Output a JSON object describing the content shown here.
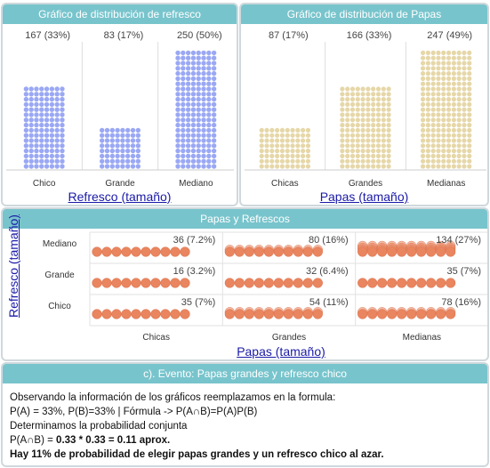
{
  "panels": {
    "refresco": {
      "title": "Gráfico de distribución de refresco",
      "axis_title": "Refresco (tamaño)"
    },
    "papas": {
      "title": "Gráfico de distribución de Papas",
      "axis_title": "Papas (tamaño)"
    },
    "joint": {
      "title": "Papas y Refrescos",
      "x_axis_title": "Papas (tamaño)",
      "y_axis_title": "Refresco (tamaño)"
    },
    "event": {
      "title": "c). Evento: Papas grandes y refresco chico",
      "line1": "Observando la información de los gráficos reemplazamos en la formula:",
      "line2": "P(A) = 33%, P(B)=33% | Fórmula -> P(A∩B)=P(A)P(B)",
      "line3": "Determinamos la probabilidad conjunta",
      "line4_prefix": "P(A∩B) = ",
      "line4_bold": "0.33 * 0.33 = 0.11 aprox.",
      "line5": "Hay 11% de probabilidad de elegir papas grandes y un refresco chico al azar."
    }
  },
  "colors": {
    "header": "#78c4cc",
    "refresco_dots": "#9aa8f4",
    "papas_dots": "#e6d7a8",
    "joint_dots": "#e9855f",
    "axis_title": "#1a1aa8"
  },
  "chart_data": [
    {
      "type": "bar",
      "title": "Gráfico de distribución de refresco",
      "xlabel": "Refresco (tamaño)",
      "categories": [
        "Chico",
        "Grande",
        "Mediano"
      ],
      "values": [
        167,
        83,
        250
      ],
      "labels": [
        "167 (33%)",
        "83 (17%)",
        "250 (50%)"
      ]
    },
    {
      "type": "bar",
      "title": "Gráfico de distribución de Papas",
      "xlabel": "Papas (tamaño)",
      "categories": [
        "Chicas",
        "Grandes",
        "Medianas"
      ],
      "values": [
        87,
        166,
        247
      ],
      "labels": [
        "87 (17%)",
        "166 (33%)",
        "247 (49%)"
      ]
    },
    {
      "type": "heatmap",
      "title": "Papas y Refrescos",
      "xlabel": "Papas (tamaño)",
      "ylabel": "Refresco (tamaño)",
      "x": [
        "Chicas",
        "Grandes",
        "Medianas"
      ],
      "y": [
        "Mediano",
        "Grande",
        "Chico"
      ],
      "values": [
        [
          36,
          80,
          134
        ],
        [
          16,
          32,
          35
        ],
        [
          35,
          54,
          78
        ]
      ],
      "labels": [
        [
          "36 (7.2%)",
          "80 (16%)",
          "134 (27%)"
        ],
        [
          "16 (3.2%)",
          "32 (6.4%)",
          "35 (7%)"
        ],
        [
          "35 (7%)",
          "54 (11%)",
          "78 (16%)"
        ]
      ]
    }
  ]
}
